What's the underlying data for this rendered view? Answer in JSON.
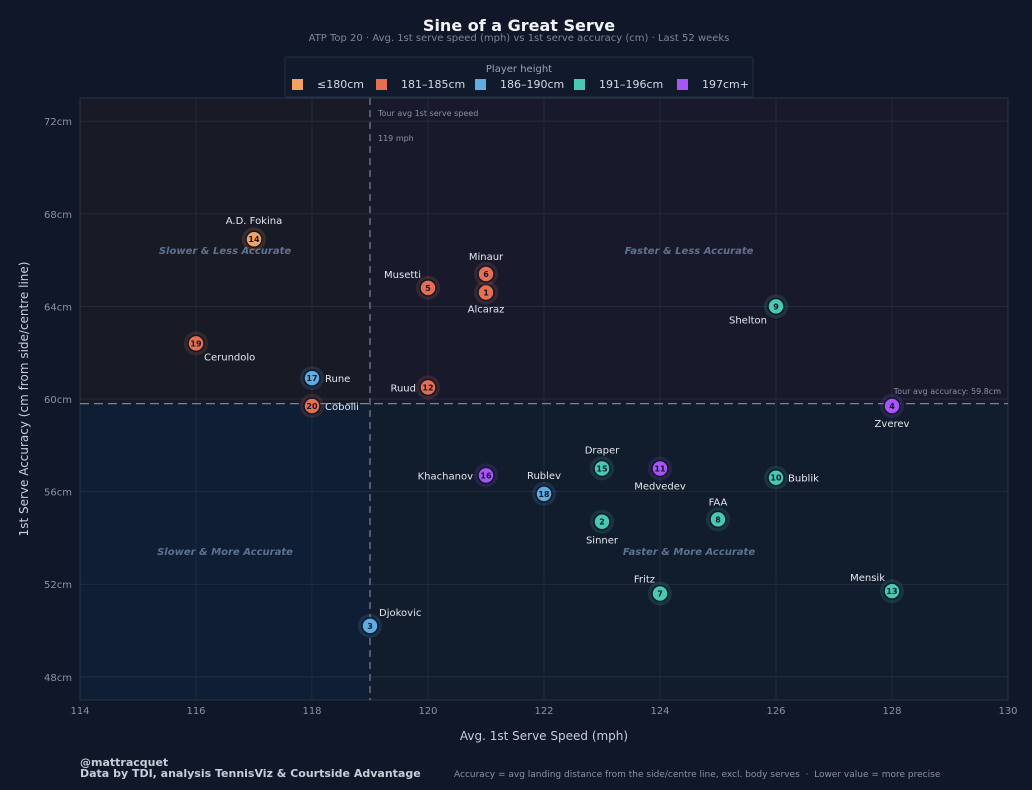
{
  "chart_data": {
    "type": "scatter",
    "title": "Sine of a Great Serve",
    "subtitle": "ATP Top 20 · Avg. 1st serve speed (mph) vs 1st serve accuracy (cm) · Last 52 weeks",
    "xlabel": "Avg. 1st Serve Speed (mph)",
    "ylabel": "1st Serve Accuracy (cm from side/centre line)",
    "xlim": [
      114,
      130
    ],
    "ylim": [
      47,
      73
    ],
    "x_ticks": [
      114,
      116,
      118,
      120,
      122,
      124,
      126,
      128,
      130
    ],
    "y_ticks": [
      48,
      52,
      56,
      60,
      64,
      68,
      72
    ],
    "y_tick_suffix": "cm",
    "grid": true,
    "legend": {
      "title": "Player height",
      "placement": "top-center",
      "entries": [
        {
          "key": "h1",
          "label": "≤180cm",
          "color": "#f4a261"
        },
        {
          "key": "h2",
          "label": "181–185cm",
          "color": "#e76f51"
        },
        {
          "key": "h3",
          "label": "186–190cm",
          "color": "#5dade2"
        },
        {
          "key": "h4",
          "label": "191–196cm",
          "color": "#48c9b0"
        },
        {
          "key": "h5",
          "label": "197cm+",
          "color": "#a855f7"
        }
      ]
    },
    "reference_lines": {
      "speed": {
        "value": 119,
        "label1": "Tour avg 1st serve speed",
        "label2": "119 mph"
      },
      "accuracy": {
        "value": 59.8,
        "label": "Tour avg accuracy: 59.8cm"
      }
    },
    "quadrants": {
      "top_left": "Slower & Less Accurate",
      "top_right": "Faster & Less Accurate",
      "bottom_left": "Slower & More Accurate",
      "bottom_right": "Faster & More Accurate"
    },
    "points": [
      {
        "rank": 1,
        "name": "Alcaraz",
        "x": 121,
        "y": 64.6,
        "height": "h2"
      },
      {
        "rank": 2,
        "name": "Sinner",
        "x": 123,
        "y": 54.7,
        "height": "h4"
      },
      {
        "rank": 3,
        "name": "Djokovic",
        "x": 119,
        "y": 50.2,
        "height": "h3"
      },
      {
        "rank": 4,
        "name": "Zverev",
        "x": 128,
        "y": 59.7,
        "height": "h5"
      },
      {
        "rank": 5,
        "name": "Musetti",
        "x": 120,
        "y": 64.8,
        "height": "h2"
      },
      {
        "rank": 6,
        "name": "Minaur",
        "x": 121,
        "y": 65.4,
        "height": "h2"
      },
      {
        "rank": 7,
        "name": "Fritz",
        "x": 124,
        "y": 51.6,
        "height": "h4"
      },
      {
        "rank": 8,
        "name": "FAA",
        "x": 125,
        "y": 54.8,
        "height": "h4"
      },
      {
        "rank": 9,
        "name": "Shelton",
        "x": 126,
        "y": 64.0,
        "height": "h4"
      },
      {
        "rank": 10,
        "name": "Bublik",
        "x": 126,
        "y": 56.6,
        "height": "h4"
      },
      {
        "rank": 11,
        "name": "Medvedev",
        "x": 124,
        "y": 57.0,
        "height": "h5"
      },
      {
        "rank": 12,
        "name": "Ruud",
        "x": 120,
        "y": 60.5,
        "height": "h2"
      },
      {
        "rank": 13,
        "name": "Mensik",
        "x": 128,
        "y": 51.7,
        "height": "h4"
      },
      {
        "rank": 14,
        "name": "A.D. Fokina",
        "x": 117,
        "y": 66.9,
        "height": "h1"
      },
      {
        "rank": 15,
        "name": "Draper",
        "x": 123,
        "y": 57.0,
        "height": "h4"
      },
      {
        "rank": 16,
        "name": "Khachanov",
        "x": 121,
        "y": 56.7,
        "height": "h5"
      },
      {
        "rank": 17,
        "name": "Rune",
        "x": 118,
        "y": 60.9,
        "height": "h3"
      },
      {
        "rank": 18,
        "name": "Rublev",
        "x": 122,
        "y": 55.9,
        "height": "h3"
      },
      {
        "rank": 19,
        "name": "Cerundolo",
        "x": 116,
        "y": 62.4,
        "height": "h2"
      },
      {
        "rank": 20,
        "name": "Cobolli",
        "x": 118,
        "y": 59.7,
        "height": "h2"
      }
    ]
  },
  "footer": {
    "handle": "@mattracquet",
    "credit": "Data by TDI, analysis TennisViz & Courtside Advantage",
    "note": "Accuracy = avg landing distance from the side/centre line, excl. body serves  ·  Lower value = more precise"
  }
}
